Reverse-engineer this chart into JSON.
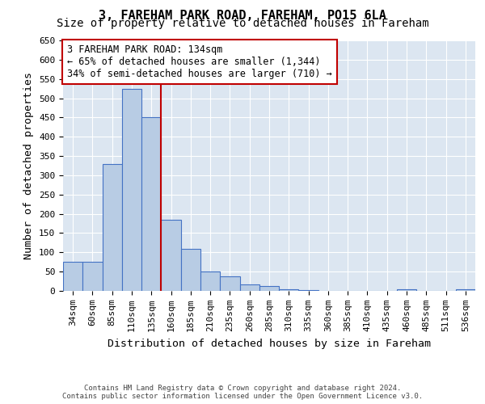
{
  "title_line1": "3, FAREHAM PARK ROAD, FAREHAM, PO15 6LA",
  "title_line2": "Size of property relative to detached houses in Fareham",
  "xlabel": "Distribution of detached houses by size in Fareham",
  "ylabel": "Number of detached properties",
  "footer_line1": "Contains HM Land Registry data © Crown copyright and database right 2024.",
  "footer_line2": "Contains public sector information licensed under the Open Government Licence v3.0.",
  "categories": [
    "34sqm",
    "60sqm",
    "85sqm",
    "110sqm",
    "135sqm",
    "160sqm",
    "185sqm",
    "210sqm",
    "235sqm",
    "260sqm",
    "285sqm",
    "310sqm",
    "335sqm",
    "360sqm",
    "385sqm",
    "410sqm",
    "435sqm",
    "460sqm",
    "485sqm",
    "511sqm",
    "536sqm"
  ],
  "values": [
    75,
    75,
    330,
    525,
    450,
    185,
    110,
    50,
    37,
    17,
    12,
    5,
    3,
    1,
    0,
    1,
    0,
    5,
    1,
    0,
    5
  ],
  "bar_color": "#b8cce4",
  "bar_edge_color": "#4472c4",
  "vline_x_index": 4,
  "vline_color": "#c00000",
  "annotation_text": "3 FAREHAM PARK ROAD: 134sqm\n← 65% of detached houses are smaller (1,344)\n34% of semi-detached houses are larger (710) →",
  "annotation_box_color": "#ffffff",
  "annotation_box_edge_color": "#c00000",
  "ylim": [
    0,
    650
  ],
  "yticks": [
    0,
    50,
    100,
    150,
    200,
    250,
    300,
    350,
    400,
    450,
    500,
    550,
    600,
    650
  ],
  "bg_color": "#dce6f1",
  "title_fontsize": 11,
  "subtitle_fontsize": 10,
  "axis_label_fontsize": 9.5,
  "tick_fontsize": 8,
  "annotation_fontsize": 8.5,
  "footer_fontsize": 6.5
}
